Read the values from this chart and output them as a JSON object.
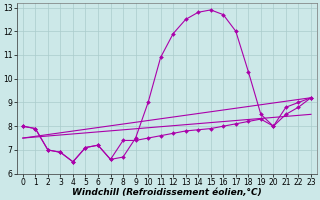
{
  "xlabel": "Windchill (Refroidissement éolien,°C)",
  "background_color": "#cce8e8",
  "grid_color": "#aacccc",
  "line_color": "#aa00aa",
  "xlim": [
    -0.5,
    23.5
  ],
  "ylim": [
    6,
    13.2
  ],
  "xticks": [
    0,
    1,
    2,
    3,
    4,
    5,
    6,
    7,
    8,
    9,
    10,
    11,
    12,
    13,
    14,
    15,
    16,
    17,
    18,
    19,
    20,
    21,
    22,
    23
  ],
  "yticks": [
    6,
    7,
    8,
    9,
    10,
    11,
    12,
    13
  ],
  "main_x": [
    0,
    1,
    2,
    3,
    4,
    5,
    6,
    7,
    8,
    9,
    10,
    11,
    12,
    13,
    14,
    15,
    16,
    17,
    18,
    19,
    20,
    21,
    22,
    23
  ],
  "main_y": [
    8.0,
    7.9,
    7.0,
    6.9,
    6.5,
    7.1,
    7.2,
    6.6,
    6.7,
    7.5,
    9.0,
    10.9,
    11.9,
    12.5,
    12.8,
    12.9,
    12.7,
    12.0,
    10.3,
    8.5,
    8.0,
    8.8,
    9.0,
    9.2
  ],
  "lower_x": [
    0,
    1,
    2,
    3,
    4,
    5,
    6,
    7,
    8,
    9,
    10,
    11,
    12,
    13,
    14,
    15,
    16,
    17,
    18,
    19,
    20,
    21,
    22,
    23
  ],
  "lower_y": [
    8.0,
    7.9,
    7.0,
    6.9,
    6.5,
    7.1,
    7.2,
    6.6,
    7.4,
    7.4,
    7.5,
    7.6,
    7.7,
    7.8,
    7.85,
    7.9,
    8.0,
    8.1,
    8.2,
    8.3,
    8.0,
    8.5,
    8.8,
    9.2
  ],
  "line1_x": [
    0,
    23
  ],
  "line1_y": [
    7.5,
    9.2
  ],
  "line2_x": [
    0,
    23
  ],
  "line2_y": [
    7.5,
    8.5
  ],
  "markersize": 2.0,
  "linewidth": 0.8,
  "tick_fontsize": 5.5,
  "xlabel_fontsize": 6.5
}
